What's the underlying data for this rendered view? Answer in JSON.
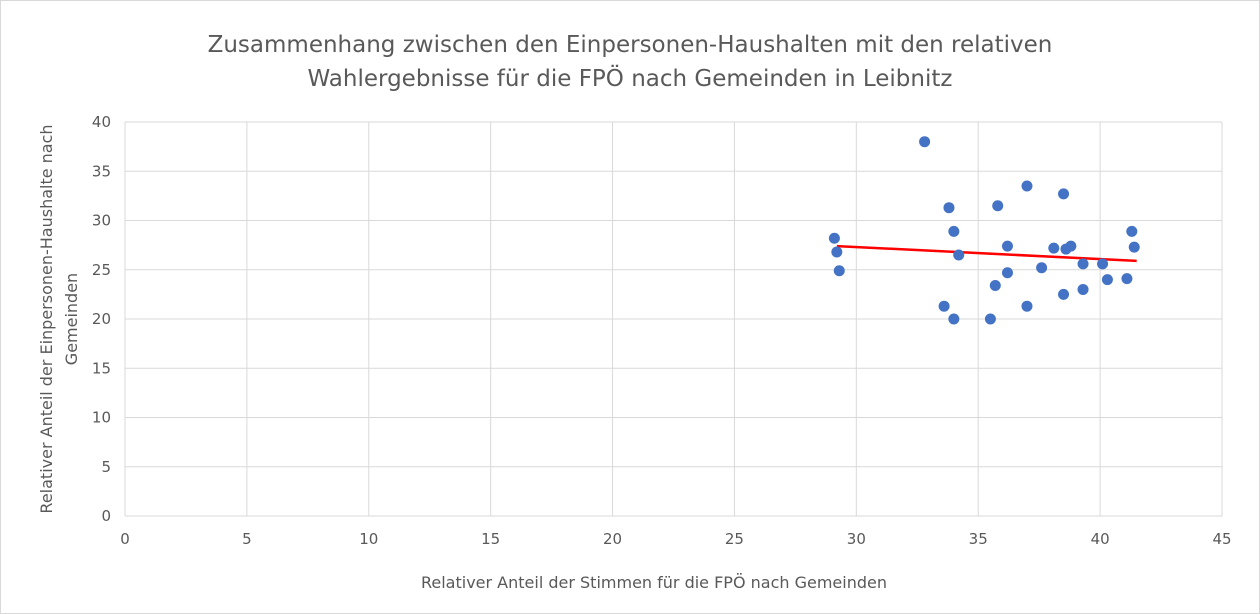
{
  "chart_data": {
    "type": "scatter",
    "title_lines": [
      "Zusammenhang zwischen den Einpersonen-Haushalten mit den relativen",
      "Wahlergebnisse für die FPÖ nach Gemeinden in Leibnitz"
    ],
    "xlabel": "Relativer Anteil der Stimmen für die FPÖ nach Gemeinden",
    "ylabel_lines": [
      "Relativer Anteil der Einpersonen-Haushalte nach",
      "Gemeinden"
    ],
    "xlim": [
      0,
      45
    ],
    "ylim": [
      0,
      40
    ],
    "x_ticks": [
      0,
      5,
      10,
      15,
      20,
      25,
      30,
      35,
      40,
      45
    ],
    "y_ticks": [
      0,
      5,
      10,
      15,
      20,
      25,
      30,
      35,
      40
    ],
    "grid": true,
    "marker_color": "#4472c4",
    "trendline_color": "#ff0000",
    "trendline": {
      "x": [
        29.2,
        41.5
      ],
      "y": [
        27.4,
        25.9
      ]
    },
    "points": [
      {
        "x": 32.8,
        "y": 38.0
      },
      {
        "x": 37.0,
        "y": 33.5
      },
      {
        "x": 38.5,
        "y": 32.7
      },
      {
        "x": 33.8,
        "y": 31.3
      },
      {
        "x": 35.8,
        "y": 31.5
      },
      {
        "x": 34.0,
        "y": 28.9
      },
      {
        "x": 41.3,
        "y": 28.9
      },
      {
        "x": 29.1,
        "y": 28.2
      },
      {
        "x": 29.2,
        "y": 26.8
      },
      {
        "x": 34.2,
        "y": 26.5
      },
      {
        "x": 36.2,
        "y": 27.4
      },
      {
        "x": 38.1,
        "y": 27.2
      },
      {
        "x": 38.6,
        "y": 27.1
      },
      {
        "x": 38.8,
        "y": 27.4
      },
      {
        "x": 41.4,
        "y": 27.3
      },
      {
        "x": 29.3,
        "y": 24.9
      },
      {
        "x": 36.2,
        "y": 24.7
      },
      {
        "x": 37.6,
        "y": 25.2
      },
      {
        "x": 39.3,
        "y": 25.6
      },
      {
        "x": 40.1,
        "y": 25.6
      },
      {
        "x": 35.7,
        "y": 23.4
      },
      {
        "x": 38.5,
        "y": 22.5
      },
      {
        "x": 39.3,
        "y": 23.0
      },
      {
        "x": 40.3,
        "y": 24.0
      },
      {
        "x": 41.1,
        "y": 24.1
      },
      {
        "x": 33.6,
        "y": 21.3
      },
      {
        "x": 37.0,
        "y": 21.3
      },
      {
        "x": 34.0,
        "y": 20.0
      },
      {
        "x": 35.5,
        "y": 20.0
      }
    ]
  }
}
